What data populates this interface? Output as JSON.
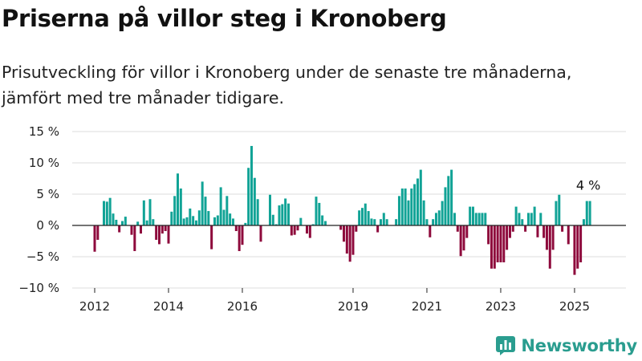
{
  "title": "Priserna på villor steg i Kronoberg",
  "subtitle": "Prisutveckling för villor i Kronoberg under de senaste tre månaderna, jämfört med tre månader tidigare.",
  "brand": {
    "name": "Newsworthy",
    "icon": "newsworthy-logo-icon",
    "color": "#2a9d8f"
  },
  "colors": {
    "positive": "#11a396",
    "negative": "#8e0a3c",
    "grid": "#dddddd",
    "zero_line": "#222222"
  },
  "chart_data": {
    "type": "bar",
    "title": "Priserna på villor steg i Kronoberg",
    "ylabel": "",
    "xlabel": "",
    "ylim": [
      -10,
      15
    ],
    "yticks": [
      -10,
      -5,
      0,
      5,
      10,
      15
    ],
    "ytick_labels": [
      "−10 %",
      "−5 %",
      "0 %",
      "5 %",
      "10 %",
      "15 %"
    ],
    "xticks": [
      {
        "label": "2012",
        "index": 0
      },
      {
        "label": "2014",
        "index": 24
      },
      {
        "label": "2016",
        "index": 48
      },
      {
        "label": "2019",
        "index": 84
      },
      {
        "label": "2021",
        "index": 108
      },
      {
        "label": "2023",
        "index": 132
      },
      {
        "label": "2025",
        "index": 156
      }
    ],
    "frequency": "monthly",
    "start": "2012-01",
    "grid": true,
    "annotation": {
      "label": "4 %",
      "target": "last"
    },
    "values": [
      -4.2,
      -2.3,
      0,
      3.9,
      3.8,
      4.4,
      1.9,
      0.9,
      -1.1,
      0.7,
      1.4,
      0,
      -1.5,
      -4.1,
      0.6,
      -1.3,
      4.0,
      0.8,
      4.2,
      1.0,
      -2.3,
      -3.0,
      -1.3,
      -0.9,
      -2.9,
      2.2,
      4.7,
      8.3,
      5.9,
      1.1,
      1.3,
      2.7,
      1.5,
      0.8,
      2.4,
      7.0,
      4.6,
      2.3,
      -3.8,
      1.3,
      1.6,
      6.1,
      2.5,
      4.7,
      1.9,
      1.1,
      -0.9,
      -4.1,
      -3.1,
      0.4,
      9.2,
      12.7,
      7.6,
      4.2,
      -2.6,
      0,
      0,
      4.9,
      1.7,
      0.2,
      3.2,
      3.4,
      4.3,
      3.5,
      -1.6,
      -1.5,
      -0.8,
      1.2,
      0,
      -1.3,
      -2.0,
      0.2,
      4.6,
      3.6,
      1.6,
      0.7,
      0,
      0,
      0,
      0,
      -0.7,
      -2.6,
      -4.5,
      -5.8,
      -4.7,
      -1.0,
      2.4,
      2.8,
      3.5,
      2.3,
      1.1,
      1.0,
      -1.1,
      1.0,
      2.0,
      1.0,
      0,
      0,
      1.0,
      4.7,
      5.9,
      5.9,
      4.0,
      5.9,
      6.6,
      7.5,
      8.9,
      4.0,
      1.0,
      -1.9,
      1.0,
      2.0,
      2.4,
      3.9,
      6.1,
      7.9,
      8.9,
      2.0,
      -1.0,
      -4.9,
      -4.0,
      -2.0,
      3.0,
      3.0,
      2.0,
      2.0,
      2.0,
      2.0,
      -3.0,
      -6.9,
      -6.9,
      -5.9,
      -5.9,
      -5.9,
      -3.9,
      -2.0,
      -1.0,
      3.0,
      2.0,
      1.0,
      -1.0,
      2.0,
      2.0,
      3.0,
      -1.9,
      2.0,
      -2.0,
      -3.9,
      -6.9,
      -3.9,
      3.9,
      4.9,
      -1.0,
      0,
      -3.0,
      0,
      -7.9,
      -6.9,
      -5.9,
      1.0,
      3.9,
      3.9
    ]
  }
}
